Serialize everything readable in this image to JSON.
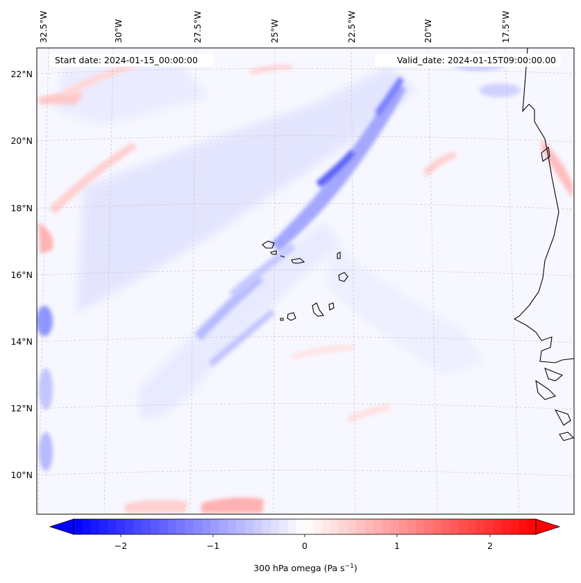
{
  "header": {
    "start_date": "Start date: 2024-01-15_00:00:00",
    "valid_date": "Valid_date: 2024-01-15T09:00:00.00"
  },
  "map": {
    "projection": "Lambert conformal",
    "field": "300 hPa omega",
    "longitude_labels": [
      "32.5°W",
      "30°W",
      "27.5°W",
      "25°W",
      "22.5°W",
      "20°W",
      "17.5°W"
    ],
    "latitude_labels": [
      "22°N",
      "20°N",
      "18°N",
      "16°N",
      "14°N",
      "12°N",
      "10°N"
    ],
    "gridlines": "dashed light gray",
    "coastline_color": "#000000",
    "features": [
      "Cape Verde Islands",
      "West African coastline"
    ]
  },
  "colorbar": {
    "label_prefix": "300 hPa omega (Pa s",
    "label_exp": "−1",
    "label_suffix": ")",
    "ticks": [
      "−2",
      "−1",
      "0",
      "1",
      "2"
    ],
    "range": [
      -2.7,
      2.7
    ],
    "extend": "both",
    "colormap": "bwr",
    "colors": {
      "min": "#0000ff",
      "mid": "#ffffff",
      "max": "#ff0000"
    }
  }
}
